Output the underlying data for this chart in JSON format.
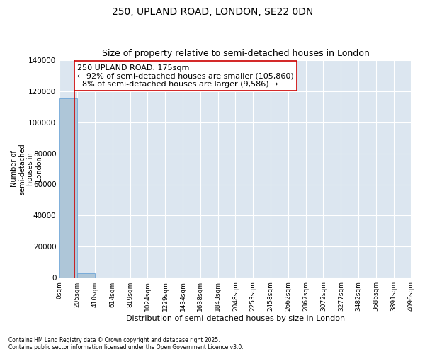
{
  "title_line1": "250, UPLAND ROAD, LONDON, SE22 0DN",
  "title_line2": "Size of property relative to semi-detached houses in London",
  "xlabel": "Distribution of semi-detached houses by size in London",
  "ylabel": "Number of\nsemi-detached\nhouses in\nLondon",
  "property_size": 175,
  "property_label": "250 UPLAND ROAD: 175sqm",
  "pct_smaller": 92,
  "count_smaller": 105860,
  "pct_larger": 8,
  "count_larger": 9586,
  "bin_edges": [
    0,
    205,
    410,
    614,
    819,
    1024,
    1229,
    1434,
    1638,
    1843,
    2048,
    2253,
    2458,
    2662,
    2867,
    3072,
    3277,
    3482,
    3686,
    3891,
    4096
  ],
  "bin_counts": [
    115446,
    2800,
    180,
    60,
    30,
    15,
    8,
    5,
    3,
    2,
    1,
    1,
    0,
    0,
    0,
    0,
    0,
    0,
    0,
    0
  ],
  "bar_color": "#aec6d8",
  "bar_edge_color": "#5b9bd5",
  "line_color": "#cc0000",
  "background_color": "#dce6f0",
  "ylim": [
    0,
    140000
  ],
  "yticks": [
    0,
    20000,
    40000,
    60000,
    80000,
    100000,
    120000,
    140000
  ],
  "footnote1": "Contains HM Land Registry data © Crown copyright and database right 2025.",
  "footnote2": "Contains public sector information licensed under the Open Government Licence v3.0.",
  "box_color": "#cc0000",
  "text_fontsize": 8,
  "title_fontsize": 10,
  "subtitle_fontsize": 9
}
